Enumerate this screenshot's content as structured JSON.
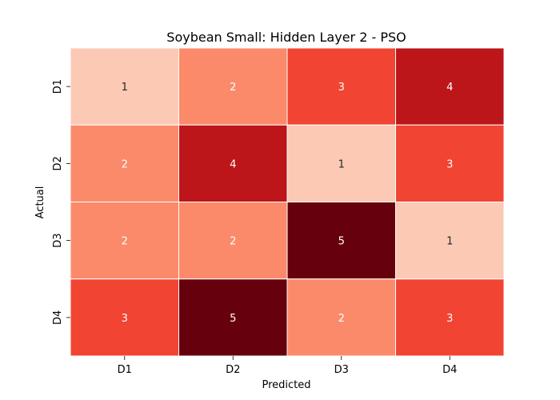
{
  "chart_data": {
    "type": "heatmap",
    "title": "Soybean Small: Hidden Layer 2 - PSO",
    "xlabel": "Predicted",
    "ylabel": "Actual",
    "x_categories": [
      "D1",
      "D2",
      "D3",
      "D4"
    ],
    "y_categories": [
      "D1",
      "D2",
      "D3",
      "D4"
    ],
    "values": [
      [
        1,
        2,
        3,
        4
      ],
      [
        2,
        4,
        1,
        3
      ],
      [
        2,
        2,
        5,
        1
      ],
      [
        3,
        5,
        2,
        3
      ]
    ],
    "color_scale": {
      "1": "#fcc9b4",
      "2": "#fb8a6a",
      "3": "#f14432",
      "4": "#bc151a",
      "5": "#67000d"
    },
    "colorbar": false,
    "grid": false
  }
}
